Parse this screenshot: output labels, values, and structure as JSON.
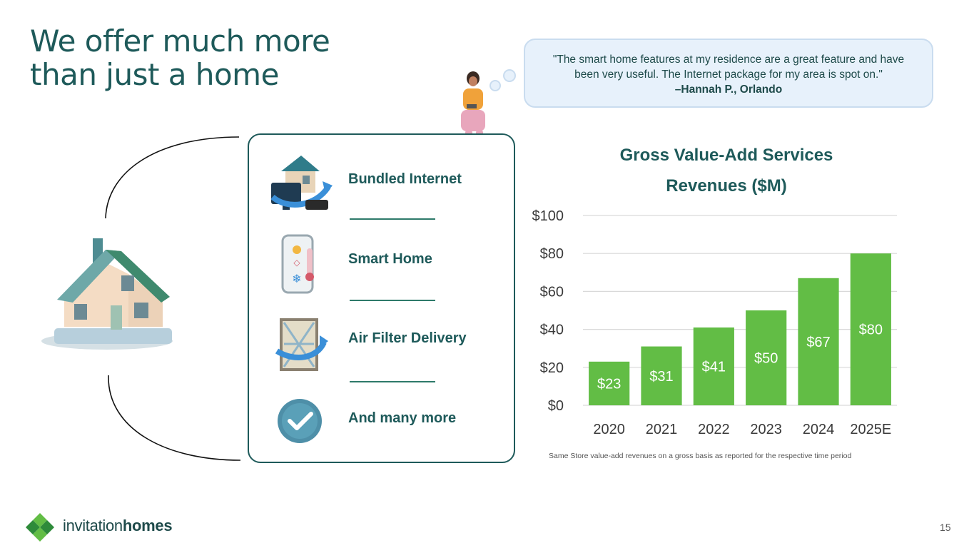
{
  "slide": {
    "title_line1": "We offer much more",
    "title_line2": "than just a home",
    "page_number": "15"
  },
  "quote": {
    "text": "\"The smart home features at my residence are a great feature and have been very useful. The Internet package for my area is spot on.\"",
    "author": "–Hannah P., Orlando"
  },
  "services": [
    {
      "label": "Bundled Internet",
      "icon": "house-router-icon"
    },
    {
      "label": "Smart Home",
      "icon": "smart-thermostat-phone-icon"
    },
    {
      "label": "Air Filter Delivery",
      "icon": "air-filter-icon"
    },
    {
      "label": "And many more",
      "icon": "checkmark-badge-icon"
    }
  ],
  "brand": {
    "name_part1": "invitation",
    "name_part2": "homes",
    "colors": {
      "teal": "#1e5a5a",
      "green": "#62bd45",
      "dark_green": "#2e8b3a"
    }
  },
  "chart_data": {
    "type": "bar",
    "title_line1": "Gross Value-Add Services",
    "title_line2": "Revenues ($M)",
    "categories": [
      "2020",
      "2021",
      "2022",
      "2023",
      "2024",
      "2025E"
    ],
    "values": [
      23,
      31,
      41,
      50,
      67,
      80
    ],
    "data_labels": [
      "$23",
      "$31",
      "$41",
      "$50",
      "$67",
      "$80"
    ],
    "y_ticks": [
      "$0",
      "$20",
      "$40",
      "$60",
      "$80",
      "$100"
    ],
    "ylim": [
      0,
      100
    ],
    "grid": true,
    "bar_color": "#62bd45",
    "footnote": "Same Store value-add revenues on a gross basis as reported for the respective time period"
  }
}
